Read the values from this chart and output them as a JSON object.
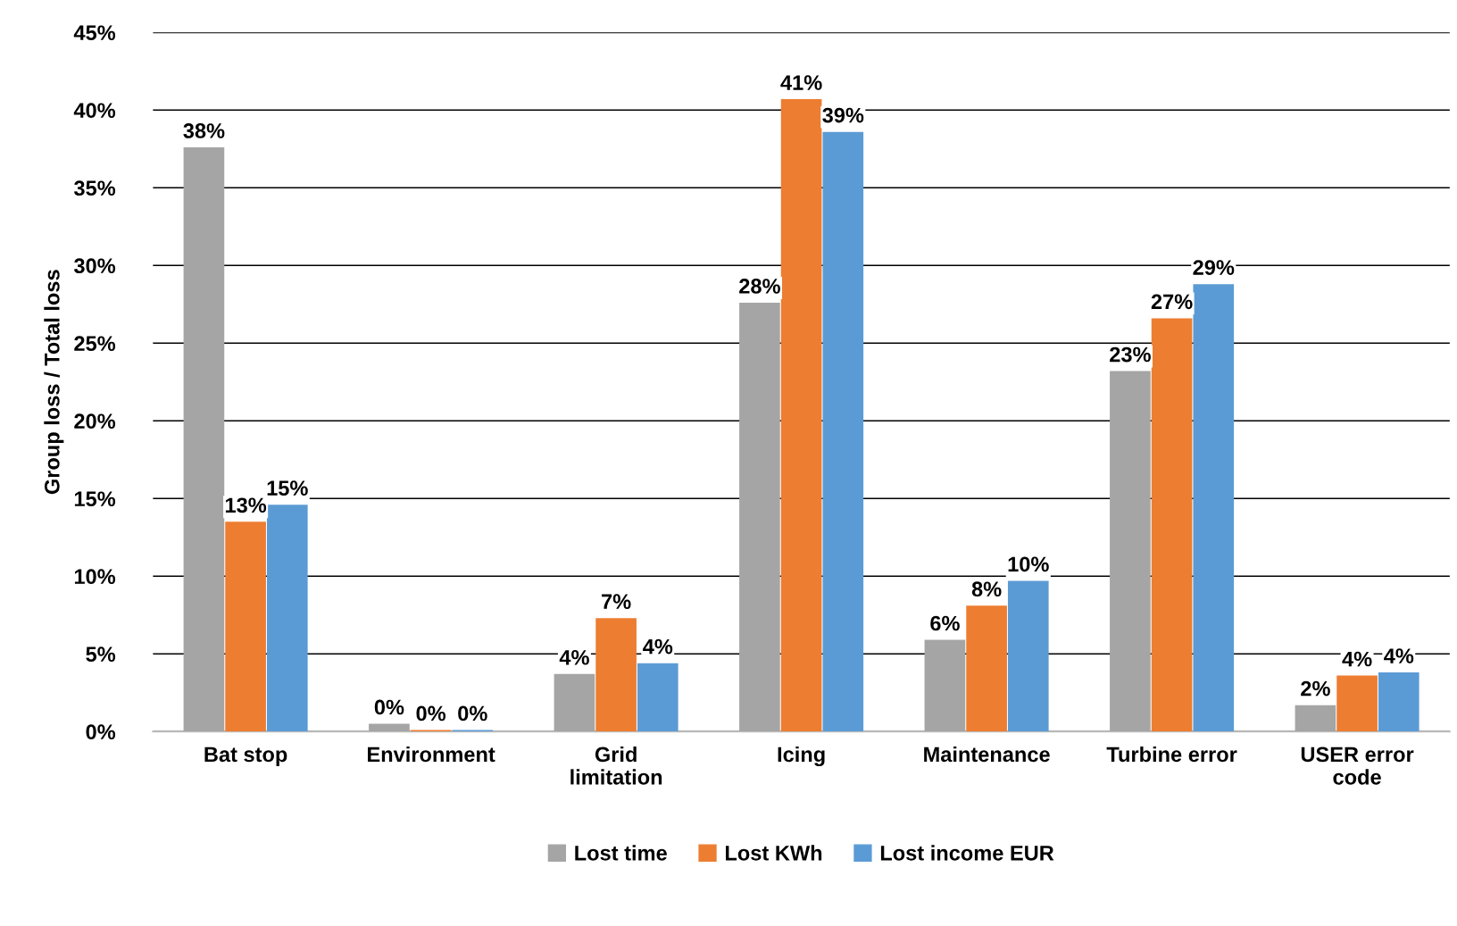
{
  "chart_data": {
    "type": "bar",
    "ylabel": "Group loss / Total loss",
    "categories": [
      "Bat stop",
      "Environment",
      "Grid\nlimitation",
      "Icing",
      "Maintenance",
      "Turbine error",
      "USER error\ncode"
    ],
    "series": [
      {
        "name": "Lost time",
        "color": "#a5a5a5",
        "values": [
          37.6,
          0.5,
          3.7,
          27.6,
          5.9,
          23.2,
          1.7
        ],
        "value_labels": [
          "38%",
          "0%",
          "4%",
          "28%",
          "6%",
          "23%",
          "2%"
        ]
      },
      {
        "name": "Lost KWh",
        "color": "#ed7d31",
        "values": [
          13.5,
          0.1,
          7.3,
          40.7,
          8.1,
          26.6,
          3.6
        ],
        "value_labels": [
          "13%",
          "0%",
          "7%",
          "41%",
          "8%",
          "27%",
          "4%"
        ]
      },
      {
        "name": "Lost income EUR",
        "color": "#5b9bd5",
        "values": [
          14.6,
          0.1,
          4.4,
          38.6,
          9.7,
          28.8,
          3.8
        ],
        "value_labels": [
          "15%",
          "0%",
          "4%",
          "39%",
          "10%",
          "29%",
          "4%"
        ]
      }
    ],
    "ylim": [
      0,
      45
    ],
    "yticks": [
      {
        "value": 0,
        "label": "0%"
      },
      {
        "value": 5,
        "label": "5%"
      },
      {
        "value": 10,
        "label": "10%"
      },
      {
        "value": 15,
        "label": "15%"
      },
      {
        "value": 20,
        "label": "20%"
      },
      {
        "value": 25,
        "label": "25%"
      },
      {
        "value": 30,
        "label": "30%"
      },
      {
        "value": 35,
        "label": "35%"
      },
      {
        "value": 40,
        "label": "40%"
      },
      {
        "value": 45,
        "label": "45%"
      }
    ],
    "grid": "y",
    "legend": "bottom"
  }
}
